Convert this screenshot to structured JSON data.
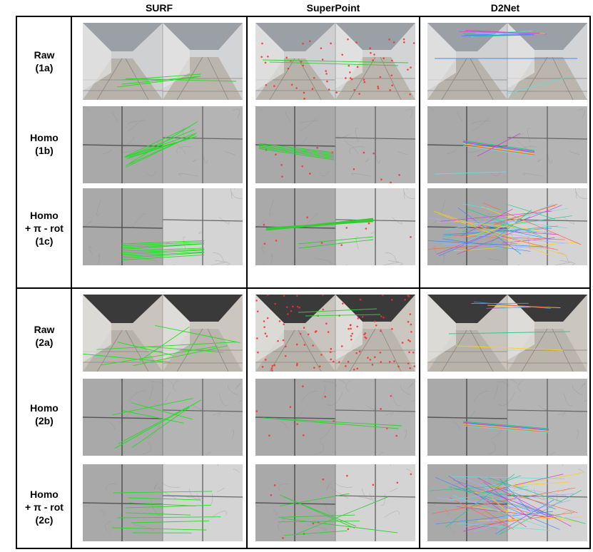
{
  "columns": [
    "SURF",
    "SuperPoint",
    "D2Net"
  ],
  "groups": [
    {
      "rows": [
        {
          "label": "Raw\n(1a)",
          "scenes": [
            "corridor",
            "corridor",
            "corridor"
          ],
          "matches": [
            "surf-sparse",
            "superpoint-keypoints",
            "d2net-top"
          ]
        },
        {
          "label": "Homo\n(1b)",
          "scenes": [
            "tile",
            "tile",
            "tile"
          ],
          "matches": [
            "surf-fan",
            "superpoint-band",
            "d2net-band"
          ]
        },
        {
          "label": "Homo\n+ π - rot\n(1c)",
          "scenes": [
            "tile-split",
            "tile-split",
            "tile-split"
          ],
          "matches": [
            "surf-parallel",
            "superpoint-fan",
            "d2net-dense"
          ]
        }
      ]
    },
    {
      "rows": [
        {
          "label": "Raw\n(2a)",
          "scenes": [
            "corridor2",
            "corridor2",
            "corridor2"
          ],
          "matches": [
            "surf-wide",
            "superpoint-keypoints-dense",
            "d2net-sparse"
          ]
        },
        {
          "label": "Homo\n(2b)",
          "scenes": [
            "tile-flat",
            "tile-flat",
            "tile-flat"
          ],
          "matches": [
            "surf-cross",
            "superpoint-band2",
            "d2net-band2"
          ]
        },
        {
          "label": "Homo\n+ π - rot\n(2c)",
          "scenes": [
            "tile-split2",
            "tile-split2",
            "tile-split2"
          ],
          "matches": [
            "surf-parallel2",
            "superpoint-parallel2",
            "d2net-dense2"
          ]
        }
      ]
    }
  ],
  "colors": {
    "surf_match": "#22dd22",
    "superpoint_match": "#33cc33",
    "superpoint_kp": "#ff2a2a",
    "d2net_palette": [
      "#22cc88",
      "#cc44cc",
      "#4488ff",
      "#ffcc22",
      "#ff6644",
      "#66dddd",
      "#aaaaff"
    ]
  }
}
